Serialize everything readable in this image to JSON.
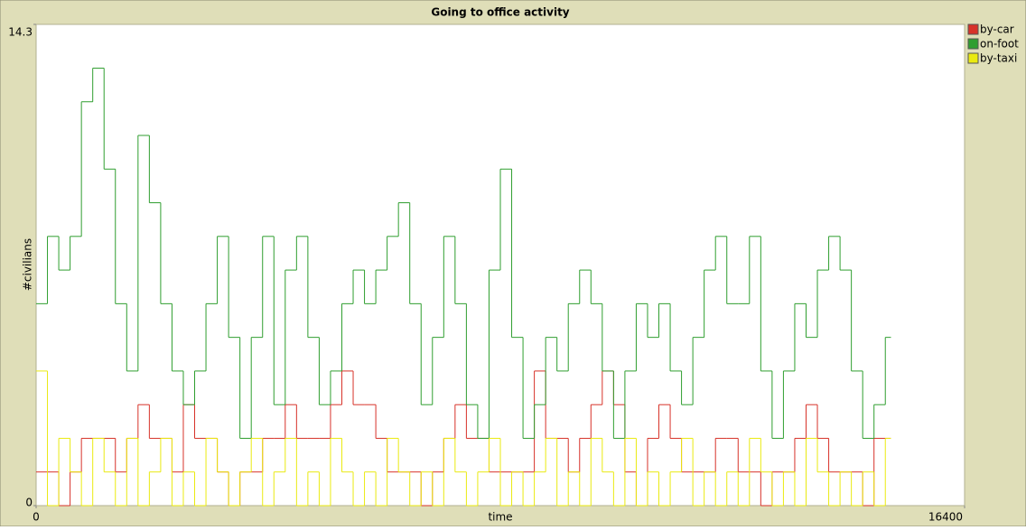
{
  "chart_data": {
    "type": "step-line",
    "title": "Going to office activity",
    "x_label": "time",
    "y_label": "#civilians",
    "xlim": [
      0,
      16400
    ],
    "xticks": [
      0,
      16400
    ],
    "ylim": [
      0,
      14.3
    ],
    "yticks": [
      0,
      14.3
    ],
    "legend": "right",
    "x": [
      0,
      200,
      400,
      600,
      800,
      1000,
      1200,
      1400,
      1600,
      1800,
      2000,
      2200,
      2400,
      2600,
      2800,
      3000,
      3200,
      3400,
      3600,
      3800,
      4000,
      4200,
      4400,
      4600,
      4800,
      5000,
      5200,
      5400,
      5600,
      5800,
      6000,
      6200,
      6400,
      6600,
      6800,
      7000,
      7200,
      7400,
      7600,
      7800,
      8000,
      8200,
      8400,
      8600,
      8800,
      9000,
      9200,
      9400,
      9600,
      9800,
      10000,
      10200,
      10400,
      10600,
      10800,
      11000,
      11200,
      11400,
      11600,
      11800,
      12000,
      12200,
      12400,
      12600,
      12800,
      13000,
      13200,
      13400,
      13600,
      13800,
      14000,
      14200,
      14400,
      14600,
      14800,
      15000
    ],
    "series": [
      {
        "name": "by-car",
        "color": "#d73229",
        "values": [
          1,
          1,
          0,
          1,
          2,
          2,
          2,
          1,
          2,
          3,
          2,
          2,
          1,
          3,
          2,
          2,
          1,
          0,
          1,
          1,
          2,
          2,
          3,
          2,
          2,
          2,
          3,
          4,
          3,
          3,
          2,
          1,
          1,
          1,
          0,
          1,
          2,
          3,
          2,
          2,
          1,
          1,
          1,
          1,
          4,
          2,
          2,
          1,
          2,
          3,
          4,
          3,
          1,
          0,
          2,
          3,
          2,
          1,
          1,
          1,
          2,
          2,
          1,
          1,
          0,
          1,
          1,
          2,
          3,
          2,
          1,
          1,
          1,
          0,
          2,
          2
        ]
      },
      {
        "name": "on-foot",
        "color": "#2f9e2f",
        "values": [
          6,
          8,
          7,
          8,
          12,
          13,
          10,
          6,
          4,
          11,
          9,
          6,
          4,
          3,
          4,
          6,
          8,
          5,
          2,
          5,
          8,
          3,
          7,
          8,
          5,
          3,
          4,
          6,
          7,
          6,
          7,
          8,
          9,
          6,
          3,
          5,
          8,
          6,
          3,
          2,
          7,
          10,
          5,
          2,
          3,
          5,
          4,
          6,
          7,
          6,
          4,
          2,
          4,
          6,
          5,
          6,
          4,
          3,
          5,
          7,
          8,
          6,
          6,
          8,
          4,
          2,
          4,
          6,
          5,
          7,
          8,
          7,
          4,
          2,
          3,
          5
        ]
      },
      {
        "name": "by-taxi",
        "color": "#eaea10",
        "values": [
          4,
          0,
          2,
          1,
          0,
          2,
          1,
          0,
          2,
          0,
          1,
          2,
          0,
          1,
          0,
          2,
          1,
          0,
          1,
          2,
          0,
          1,
          2,
          0,
          1,
          0,
          2,
          1,
          0,
          1,
          0,
          2,
          1,
          0,
          1,
          0,
          2,
          1,
          0,
          1,
          2,
          0,
          1,
          0,
          1,
          2,
          0,
          1,
          0,
          2,
          1,
          0,
          2,
          0,
          1,
          0,
          1,
          2,
          0,
          1,
          0,
          1,
          0,
          2,
          1,
          0,
          1,
          0,
          2,
          1,
          0,
          1,
          0,
          1,
          0,
          2
        ]
      }
    ]
  }
}
